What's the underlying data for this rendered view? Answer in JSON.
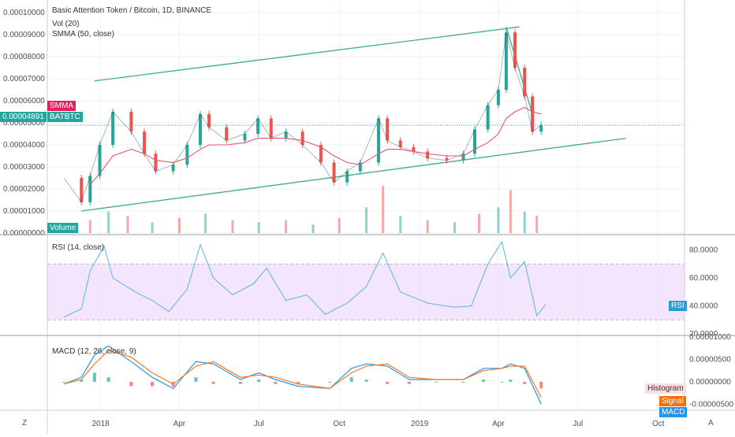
{
  "header": {
    "title": "Basic Attention Token / Bitcoin, 1D, BINANCE",
    "vol_label": "Vol (20)",
    "smma_label": "SMMA (50, close)"
  },
  "tags": {
    "smma": "SMMA",
    "symbol": "BATBTC",
    "price": "0.00004891",
    "volume": "Volume",
    "rsi": "RSI",
    "histogram": "Histogram",
    "signal": "Signal",
    "macd": "MACD"
  },
  "colors": {
    "up": "#26a69a",
    "down": "#ef5350",
    "smma": "#e9546b",
    "rsi_line": "#5ab4e6",
    "rsi_band": "#eedcfb",
    "macd_line": "#2196f3",
    "signal_line": "#ff7a1a",
    "trend_line": "#3fae7f",
    "price_tag": "#26a69a",
    "smma_tag": "#e91e63",
    "rsi_tag": "#2b9bd8",
    "signal_tag": "#ff6d00",
    "histogram_tag": "#fbdde3"
  },
  "panes": {
    "rsi_label": "RSI (14, close)",
    "macd_label": "MACD (12, 26, close, 9)"
  },
  "bottom": {
    "zoom_left": "Z",
    "auto": "A"
  },
  "chart_data": {
    "type": "candlestick",
    "price_axis": {
      "ticks": [
        "0.00010000",
        "0.00009000",
        "0.00008000",
        "0.00007000",
        "0.00006000",
        "0.00005000",
        "0.00004000",
        "0.00003000",
        "0.00002000",
        "0.00001000",
        "0.00000000"
      ],
      "ylim": [
        0,
        0.0001
      ]
    },
    "current_price": 4.891e-05,
    "rsi_axis": {
      "ticks": [
        "80.0000",
        "60.0000",
        "40.0000",
        "20.0000"
      ],
      "ylim": [
        20,
        90
      ],
      "bands": [
        30,
        70
      ]
    },
    "macd_axis": {
      "ticks": [
        "0.00001000",
        "0.00000500",
        "0.00000000",
        "-0.00000500"
      ],
      "ylim": [
        -6e-06,
        1e-05
      ]
    },
    "time_axis": {
      "labels": [
        "2018",
        "Apr",
        "Jul",
        "Oct",
        "2019",
        "Apr",
        "Jul",
        "Oct"
      ],
      "start": "2017-11-01",
      "end": "2019-10-31"
    },
    "price_series": {
      "dates": [
        "2017-11-20",
        "2017-12-10",
        "2017-12-20",
        "2017-12-31",
        "2018-01-15",
        "2018-02-05",
        "2018-02-20",
        "2018-03-05",
        "2018-03-25",
        "2018-04-10",
        "2018-04-25",
        "2018-05-05",
        "2018-05-25",
        "2018-06-15",
        "2018-06-30",
        "2018-07-15",
        "2018-08-01",
        "2018-08-20",
        "2018-09-10",
        "2018-09-25",
        "2018-10-10",
        "2018-10-25",
        "2018-11-15",
        "2018-11-25",
        "2018-12-10",
        "2018-12-25",
        "2019-01-10",
        "2019-02-01",
        "2019-02-20",
        "2019-03-05",
        "2019-03-20",
        "2019-04-01",
        "2019-04-10",
        "2019-04-20",
        "2019-05-01",
        "2019-05-10",
        "2019-05-20"
      ],
      "close": [
        2.5e-05,
        1.4e-05,
        2.6e-05,
        4e-05,
        5.5e-05,
        4.6e-05,
        3.6e-05,
        2.8e-05,
        3.1e-05,
        4e-05,
        5.4e-05,
        4.8e-05,
        4.2e-05,
        4.5e-05,
        5.2e-05,
        4.3e-05,
        4.6e-05,
        4e-05,
        3.2e-05,
        2.3e-05,
        2.8e-05,
        3.2e-05,
        5.2e-05,
        4.2e-05,
        3.9e-05,
        3.7e-05,
        3.4e-05,
        3.3e-05,
        3.6e-05,
        4.7e-05,
        5.8e-05,
        6.5e-05,
        9.1e-05,
        7.5e-05,
        6.2e-05,
        4.6e-05,
        4.9e-05
      ],
      "smma": [
        null,
        null,
        2.2e-05,
        2.7e-05,
        3.5e-05,
        3.8e-05,
        3.6e-05,
        3.3e-05,
        3.2e-05,
        3.4e-05,
        3.8e-05,
        4e-05,
        4e-05,
        4.1e-05,
        4.3e-05,
        4.3e-05,
        4.3e-05,
        4.2e-05,
        3.9e-05,
        3.5e-05,
        3.2e-05,
        3.1e-05,
        3.6e-05,
        3.8e-05,
        3.8e-05,
        3.7e-05,
        3.6e-05,
        3.5e-05,
        3.5e-05,
        3.8e-05,
        4.1e-05,
        4.5e-05,
        5.2e-05,
        5.5e-05,
        5.7e-05,
        5.5e-05,
        5.4e-05
      ]
    },
    "channel": {
      "upper": {
        "from": {
          "date": "2017-12-25",
          "price": 6.9e-05
        },
        "to": {
          "date": "2019-04-25",
          "price": 9.35e-05
        }
      },
      "lower": {
        "from": {
          "date": "2017-12-10",
          "price": 1e-05
        },
        "to": {
          "date": "2019-08-25",
          "price": 4.3e-05
        }
      },
      "wedge": {
        "from": {
          "date": "2019-04-10",
          "price": 9.35e-05
        },
        "to": {
          "date": "2019-05-10",
          "price": 5.4e-05
        }
      }
    },
    "volume": {
      "dates": [
        "2017-11-20",
        "2017-12-20",
        "2018-01-10",
        "2018-02-01",
        "2018-03-01",
        "2018-04-01",
        "2018-05-01",
        "2018-06-01",
        "2018-07-01",
        "2018-08-01",
        "2018-09-01",
        "2018-10-01",
        "2018-11-01",
        "2018-11-20",
        "2018-12-10",
        "2019-01-10",
        "2019-02-10",
        "2019-03-10",
        "2019-04-01",
        "2019-04-15",
        "2019-05-01",
        "2019-05-15"
      ],
      "values": [
        4,
        6,
        10,
        8,
        5,
        7,
        9,
        6,
        5,
        6,
        4,
        7,
        12,
        22,
        8,
        6,
        5,
        9,
        12,
        20,
        10,
        8
      ]
    },
    "rsi": {
      "dates": [
        "2017-11-20",
        "2017-12-10",
        "2017-12-20",
        "2018-01-05",
        "2018-01-15",
        "2018-02-10",
        "2018-03-01",
        "2018-03-20",
        "2018-04-10",
        "2018-04-25",
        "2018-05-10",
        "2018-06-01",
        "2018-06-25",
        "2018-07-10",
        "2018-08-01",
        "2018-08-25",
        "2018-09-15",
        "2018-10-10",
        "2018-11-01",
        "2018-11-20",
        "2018-12-10",
        "2019-01-10",
        "2019-02-10",
        "2019-03-01",
        "2019-03-20",
        "2019-04-05",
        "2019-04-15",
        "2019-05-01",
        "2019-05-15",
        "2019-05-25"
      ],
      "values": [
        32,
        38,
        65,
        83,
        60,
        50,
        44,
        36,
        52,
        84,
        60,
        48,
        56,
        67,
        44,
        48,
        34,
        42,
        54,
        78,
        50,
        42,
        39,
        40,
        70,
        86,
        60,
        72,
        33,
        41
      ]
    },
    "macd": {
      "dates": [
        "2017-11-20",
        "2017-12-10",
        "2017-12-25",
        "2018-01-10",
        "2018-02-05",
        "2018-03-01",
        "2018-03-25",
        "2018-04-20",
        "2018-05-10",
        "2018-06-10",
        "2018-07-01",
        "2018-07-20",
        "2018-08-15",
        "2018-09-20",
        "2018-10-15",
        "2018-11-01",
        "2018-11-25",
        "2018-12-20",
        "2019-01-20",
        "2019-02-20",
        "2019-03-15",
        "2019-04-05",
        "2019-04-15",
        "2019-05-01",
        "2019-05-20"
      ],
      "macd": [
        -5e-07,
        1e-06,
        6e-06,
        8e-06,
        4.5e-06,
        1e-06,
        -1.5e-06,
        4.5e-06,
        4e-06,
        5e-07,
        2e-06,
        5e-07,
        -1e-06,
        -1.5e-06,
        3e-06,
        4e-06,
        3.5e-06,
        5e-07,
        5e-07,
        5e-07,
        3e-06,
        3e-06,
        4e-06,
        3e-06,
        -5e-06
      ],
      "signal": [
        -5e-07,
        5e-07,
        4e-06,
        7e-06,
        5.5e-06,
        2e-06,
        -5e-07,
        3.5e-06,
        4.5e-06,
        1e-06,
        1.5e-06,
        1e-06,
        -5e-07,
        -1.5e-06,
        2e-06,
        3.5e-06,
        4e-06,
        1e-06,
        5e-07,
        5e-07,
        2.5e-06,
        3e-06,
        3.5e-06,
        3.5e-06,
        -3.5e-06
      ]
    }
  }
}
